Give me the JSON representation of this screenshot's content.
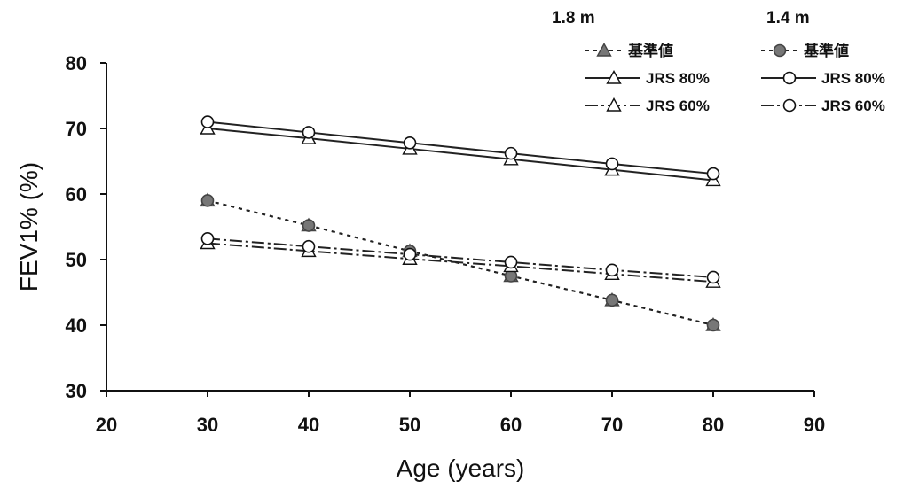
{
  "chart_data": {
    "type": "line",
    "xlabel": "Age (years)",
    "ylabel": "FEV1% (%)",
    "xlim": [
      20,
      90
    ],
    "ylim": [
      30,
      80
    ],
    "xticks": [
      20,
      30,
      40,
      50,
      60,
      70,
      80,
      90
    ],
    "yticks": [
      30,
      40,
      50,
      60,
      70,
      80
    ],
    "grid": false,
    "legend_position": "top-right",
    "x": [
      30,
      40,
      50,
      60,
      70,
      80
    ],
    "legend_groups": [
      {
        "title": "1.8 m",
        "entries": [
          "基準値",
          "JRS 80%",
          "JRS 60%"
        ]
      },
      {
        "title": "1.4 m",
        "entries": [
          "基準値",
          "JRS 80%",
          "JRS 60%"
        ]
      }
    ],
    "series": [
      {
        "group": "1.8 m",
        "label": "基準値",
        "marker": "triangle",
        "fill": "filled",
        "line": "dotted",
        "values": [
          59.0,
          55.2,
          51.3,
          47.5,
          43.8,
          40.0
        ]
      },
      {
        "group": "1.4 m",
        "label": "基準値",
        "marker": "circle",
        "fill": "filled",
        "line": "dotted",
        "values": [
          59.0,
          55.2,
          51.3,
          47.5,
          43.8,
          40.0
        ]
      },
      {
        "group": "1.8 m",
        "label": "JRS 80%",
        "marker": "triangle",
        "fill": "open",
        "line": "solid",
        "values": [
          70.0,
          68.5,
          66.9,
          65.3,
          63.7,
          62.1
        ]
      },
      {
        "group": "1.4 m",
        "label": "JRS 80%",
        "marker": "circle",
        "fill": "open",
        "line": "solid",
        "values": [
          71.0,
          69.4,
          67.8,
          66.2,
          64.6,
          63.1
        ]
      },
      {
        "group": "1.8 m",
        "label": "JRS 60%",
        "marker": "triangle",
        "fill": "open",
        "line": "dashdot",
        "values": [
          52.5,
          51.3,
          50.1,
          49.0,
          47.8,
          46.6
        ]
      },
      {
        "group": "1.4 m",
        "label": "JRS 60%",
        "marker": "circle",
        "fill": "open",
        "line": "dashdot",
        "values": [
          53.2,
          52.0,
          50.8,
          49.6,
          48.4,
          47.3
        ]
      }
    ]
  }
}
